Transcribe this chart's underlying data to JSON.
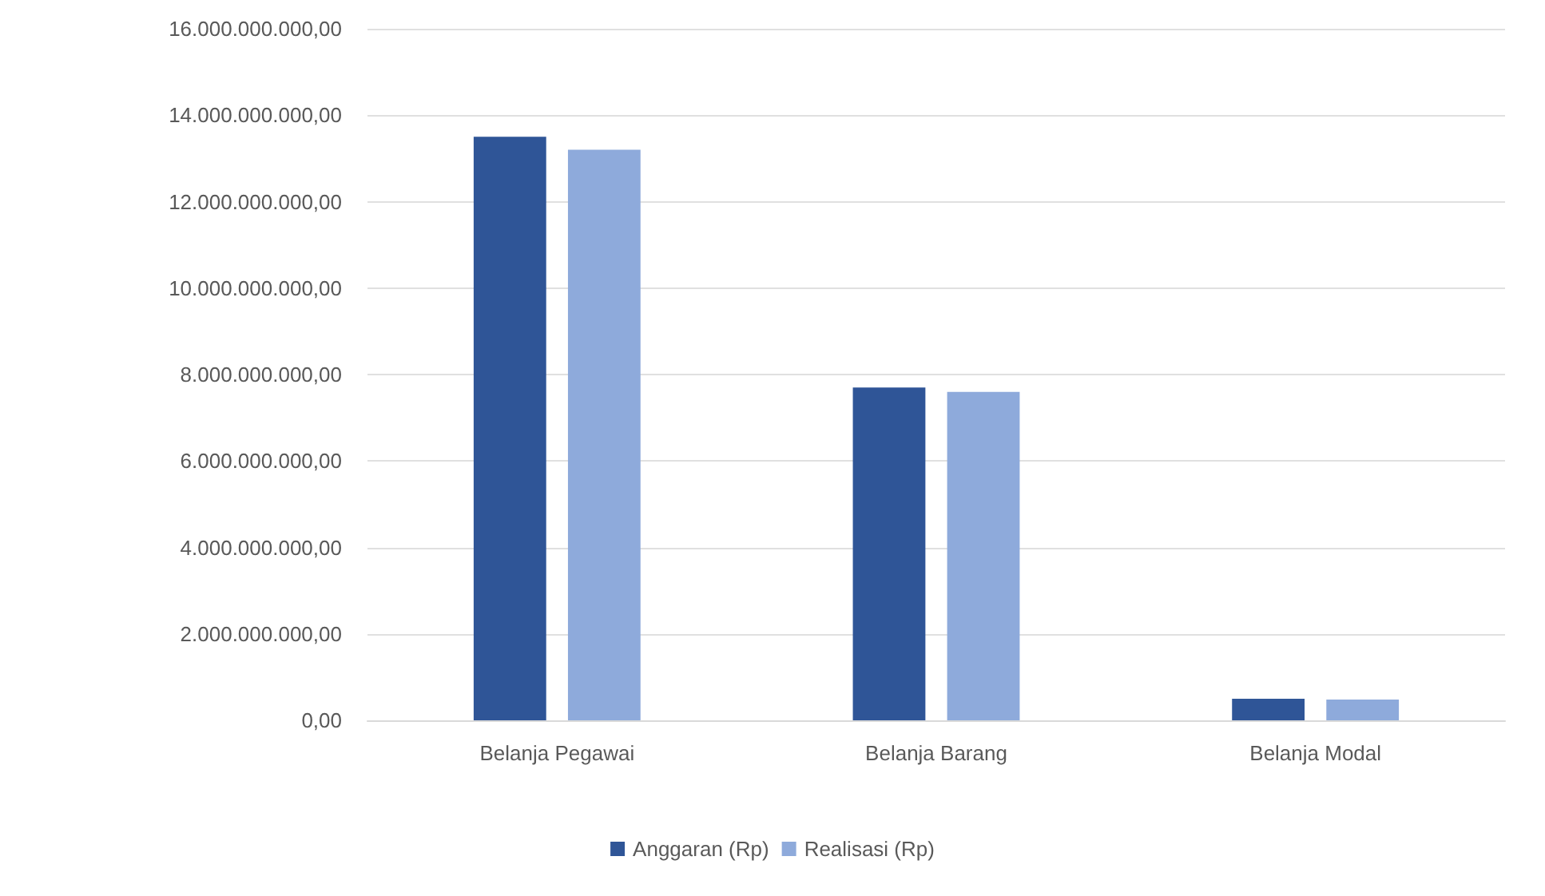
{
  "chart_data": {
    "type": "bar",
    "categories": [
      "Belanja Pegawai",
      "Belanja Barang",
      "Belanja Modal"
    ],
    "series": [
      {
        "name": "Anggaran (Rp)",
        "color": "#2f5597",
        "values": [
          13500000000,
          7700000000,
          500000000
        ]
      },
      {
        "name": "Realisasi (Rp)",
        "color": "#8eaadb",
        "values": [
          13200000000,
          7600000000,
          480000000
        ]
      }
    ],
    "ylim": [
      0,
      16000000000
    ],
    "yticks": [
      {
        "value": 0,
        "label": "0,00"
      },
      {
        "value": 2000000000,
        "label": "2.000.000.000,00"
      },
      {
        "value": 4000000000,
        "label": "4.000.000.000,00"
      },
      {
        "value": 6000000000,
        "label": "6.000.000.000,00"
      },
      {
        "value": 8000000000,
        "label": "8.000.000.000,00"
      },
      {
        "value": 10000000000,
        "label": "10.000.000.000,00"
      },
      {
        "value": 12000000000,
        "label": "12.000.000.000,00"
      },
      {
        "value": 14000000000,
        "label": "14.000.000.000,00"
      },
      {
        "value": 16000000000,
        "label": "16.000.000.000,00"
      }
    ],
    "grid": "y",
    "legend": "bottom"
  }
}
